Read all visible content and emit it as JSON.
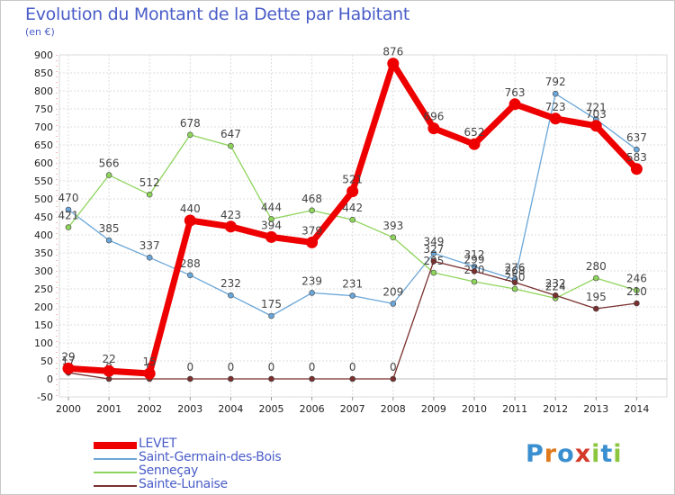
{
  "title": "Evolution du Montant de la Dette par Habitant",
  "unit": "(en €)",
  "logo": {
    "letters": [
      "P",
      "r",
      "o",
      "x",
      "i",
      "t",
      "i"
    ],
    "colors": [
      "#3a8fd0",
      "#e07a1c",
      "#3a8fd0",
      "#d43a2a",
      "#8cc63f",
      "#3a8fd0",
      "#8cc63f"
    ]
  },
  "chart_data": {
    "type": "line",
    "title": "Evolution du Montant de la Dette par Habitant",
    "ylabel": "(en €)",
    "xlabel": "",
    "x": [
      "2000",
      "2001",
      "2002",
      "2003",
      "2004",
      "2005",
      "2006",
      "2007",
      "2008",
      "2009",
      "2010",
      "2011",
      "2012",
      "2013",
      "2014"
    ],
    "ylim": [
      -50,
      900
    ],
    "yticks": [
      -50,
      0,
      50,
      100,
      150,
      200,
      250,
      300,
      350,
      400,
      450,
      500,
      550,
      600,
      650,
      700,
      750,
      800,
      850,
      900
    ],
    "grid": true,
    "legend_position": "bottom-left",
    "series": [
      {
        "name": "LEVET",
        "color": "#ee0000",
        "width": 7,
        "values": [
          29,
          22,
          15,
          440,
          423,
          394,
          379,
          521,
          876,
          696,
          652,
          763,
          723,
          703,
          583
        ],
        "labels": [
          "29",
          "22",
          "15",
          "440",
          "423",
          "394",
          "379",
          "521",
          "876",
          "696",
          "652",
          "763",
          "723",
          "703",
          "583"
        ]
      },
      {
        "name": "Saint-Germain-des-Bois",
        "color": "#6aa6d8",
        "width": 1.3,
        "values": [
          470,
          385,
          337,
          288,
          232,
          175,
          239,
          231,
          209,
          349,
          312,
          276,
          792,
          721,
          637
        ],
        "labels": [
          "470",
          "385",
          "337",
          "288",
          "232",
          "175",
          "239",
          "231",
          "209",
          "349",
          "312",
          "276",
          "792",
          "721",
          "637"
        ]
      },
      {
        "name": "Senneçay",
        "color": "#8ed45a",
        "width": 1.3,
        "values": [
          421,
          566,
          512,
          678,
          647,
          444,
          468,
          442,
          393,
          295,
          270,
          250,
          224,
          280,
          246
        ],
        "labels": [
          "421",
          "566",
          "512",
          "678",
          "647",
          "444",
          "468",
          "442",
          "393",
          "295",
          "270",
          "250",
          "224",
          "280",
          "246"
        ]
      },
      {
        "name": "Sainte-Lunaise",
        "color": "#7a2f2f",
        "width": 1.3,
        "values": [
          17,
          0,
          0,
          0,
          0,
          0,
          0,
          0,
          0,
          327,
          299,
          268,
          232,
          195,
          210
        ],
        "labels": [
          "17",
          "0",
          "0",
          "0",
          "0",
          "0",
          "0",
          "0",
          "0",
          "327",
          "299",
          "268",
          "232",
          "195",
          "210"
        ]
      }
    ]
  }
}
